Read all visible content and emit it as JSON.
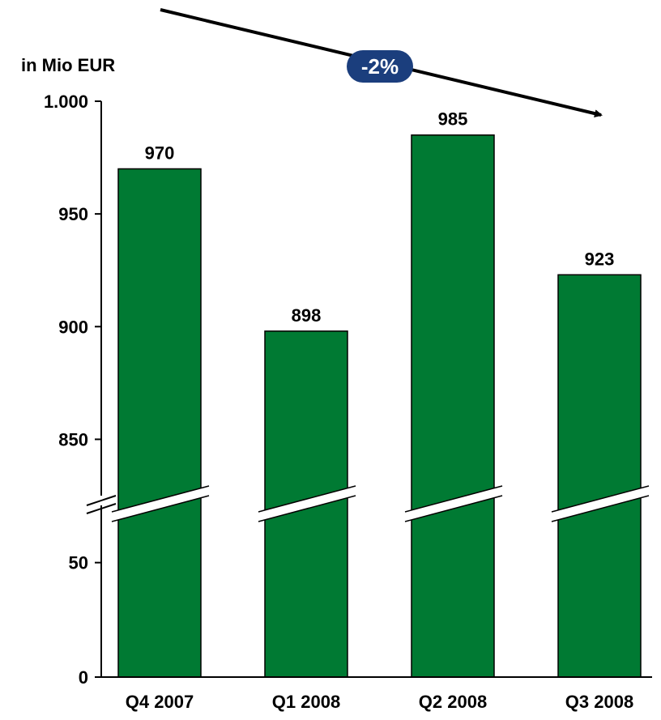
{
  "chart_data": {
    "type": "bar",
    "unit_label": "in Mio EUR",
    "categories": [
      "Q4 2007",
      "Q1 2008",
      "Q2 2008",
      "Q3 2008"
    ],
    "values": [
      970,
      898,
      985,
      923
    ],
    "value_labels": [
      "970",
      "898",
      "985",
      "923"
    ],
    "y_axis": {
      "broken": true,
      "upper_segment": {
        "range": [
          825,
          1000
        ],
        "ticks": [
          850,
          900,
          950,
          1000
        ]
      },
      "lower_segment": {
        "range": [
          0,
          75
        ],
        "ticks": [
          0,
          50
        ]
      },
      "tick_labels": {
        "0": "0",
        "50": "50",
        "850": "850",
        "900": "900",
        "950": "950",
        "1000": "1.000"
      }
    },
    "grid": false,
    "trend": {
      "label": "-2%",
      "direction": "down"
    },
    "colors": {
      "bar_fill": "#007A33",
      "bar_stroke": "#000000",
      "badge_fill": "#1B3E7D",
      "badge_text": "#FFFFFF",
      "axis": "#000000"
    }
  }
}
